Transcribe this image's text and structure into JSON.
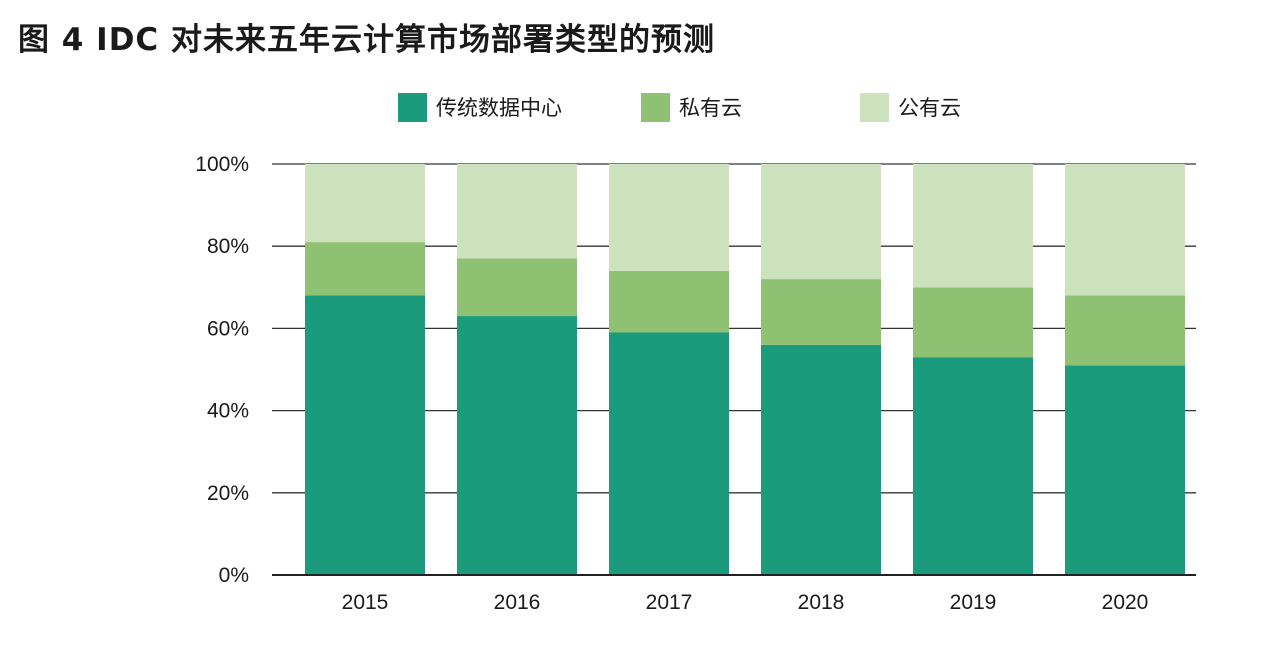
{
  "title": "图 4  IDC 对未来五年云计算市场部署类型的预测",
  "legend": [
    {
      "label": "传统数据中心",
      "color": "#1a9c7c"
    },
    {
      "label": "私有云",
      "color": "#8fc172"
    },
    {
      "label": "公有云",
      "color": "#cce2bd"
    }
  ],
  "chart_data": {
    "type": "bar",
    "stacked": true,
    "title": "图 4  IDC 对未来五年云计算市场部署类型的预测",
    "categories": [
      "2015",
      "2016",
      "2017",
      "2018",
      "2019",
      "2020"
    ],
    "series": [
      {
        "name": "传统数据中心",
        "color": "#1a9c7c",
        "values": [
          68,
          63,
          59,
          56,
          53,
          51
        ]
      },
      {
        "name": "私有云",
        "color": "#8fc172",
        "values": [
          13,
          14,
          15,
          16,
          17,
          17
        ]
      },
      {
        "name": "公有云",
        "color": "#cce2bd",
        "values": [
          19,
          23,
          26,
          28,
          30,
          32
        ]
      }
    ],
    "ylim": [
      0,
      100
    ],
    "yticks": [
      "0%",
      "20%",
      "40%",
      "60%",
      "80%",
      "100%"
    ],
    "ytick_values": [
      0,
      20,
      40,
      60,
      80,
      100
    ],
    "grid": true,
    "legend_position": "top"
  }
}
